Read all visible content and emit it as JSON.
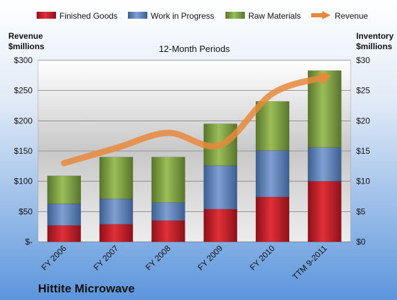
{
  "chart_data": {
    "type": "bar",
    "stacked": true,
    "title": "12-Month Periods",
    "company": "Hittite Microwave",
    "categories": [
      "FY 2006",
      "FY 2007",
      "FY 2008",
      "FY 2009",
      "FY 2010",
      "TTM 9-2011"
    ],
    "series": [
      {
        "name": "Finished Goods",
        "axis": "right",
        "color": "#c0202a",
        "values": [
          2.7,
          2.9,
          3.5,
          5.4,
          7.4,
          10.0
        ]
      },
      {
        "name": "Work in Progress",
        "axis": "right",
        "color": "#5a7fb8",
        "values": [
          3.6,
          4.2,
          3.0,
          7.2,
          7.7,
          5.6
        ]
      },
      {
        "name": "Raw Materials",
        "axis": "right",
        "color": "#7a9a3a",
        "values": [
          4.6,
          6.9,
          7.5,
          6.9,
          8.1,
          12.7
        ]
      },
      {
        "name": "Revenue",
        "type": "line",
        "axis": "left",
        "color": "#e8893a",
        "values": [
          130,
          155,
          180,
          160,
          245,
          272
        ]
      }
    ],
    "left_axis": {
      "label_line1": "Revenue",
      "label_line2": "$millions",
      "ylim": [
        0,
        300
      ],
      "tick_labels": [
        "$-",
        "$50",
        "$100",
        "$150",
        "$200",
        "$250",
        "$300"
      ]
    },
    "right_axis": {
      "label_line1": "Inventory",
      "label_line2": "$millions",
      "ylim": [
        0,
        30
      ],
      "tick_labels": [
        "$0",
        "$5",
        "$10",
        "$15",
        "$20",
        "$25",
        "$30"
      ]
    },
    "grid": true,
    "legend_position": "top"
  }
}
